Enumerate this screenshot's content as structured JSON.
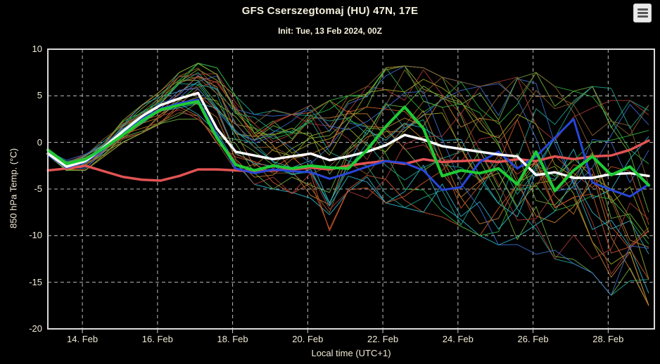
{
  "header": {
    "title": "GFS Cserszegtomaj (HU) 47N, 17E",
    "subtitle": "Init: Tue, 13 Feb 2024, 00Z"
  },
  "menu": {
    "icon": "hamburger-menu-icon"
  },
  "colors": {
    "background": "#000000",
    "text": "#f5f0dc",
    "grid": "#b9b9b9",
    "frame": "#d9d9d9"
  },
  "chart_data": {
    "type": "line",
    "title": "GFS Cserszegtomaj (HU) 47N, 17E",
    "subtitle": "Init: Tue, 13 Feb 2024, 00Z",
    "xlabel": "Local time (UTC+1)",
    "ylabel": "850 hPa Temp. (°C)",
    "ylim": [
      -20,
      10
    ],
    "yticks": [
      10,
      5,
      0,
      -5,
      -10,
      -15,
      -20
    ],
    "xlim": [
      0,
      16.15
    ],
    "xtick_pos": [
      0.92,
      2.92,
      4.92,
      6.92,
      8.92,
      10.92,
      12.92,
      14.92
    ],
    "xtick_labels": [
      "14. Feb",
      "16. Feb",
      "18. Feb",
      "20. Feb",
      "22. Feb",
      "24. Feb",
      "26. Feb",
      "28. Feb"
    ],
    "x_start_day": 0,
    "x_step_day": 0.5,
    "grid": true,
    "legend": false,
    "series": [
      {
        "name": "red-line",
        "color": "#e25353",
        "width": 3.5,
        "values": [
          -3.0,
          -2.8,
          -2.5,
          -3.1,
          -3.7,
          -4.0,
          -4.1,
          -3.6,
          -2.9,
          -2.9,
          -3.0,
          -3.1,
          -3.0,
          -2.9,
          -2.7,
          -2.9,
          -2.5,
          -2.2,
          -2.0,
          -2.3,
          -1.8,
          -2.1,
          -2.0,
          -1.9,
          -2.1,
          -1.8,
          -2.0,
          -1.5,
          -1.8,
          -1.5,
          -1.4,
          -0.8,
          0.2
        ]
      },
      {
        "name": "blue-line",
        "color": "#2746d9",
        "width": 3,
        "values": [
          -1.3,
          -2.7,
          -2.1,
          -0.7,
          1.0,
          2.5,
          3.6,
          4.2,
          4.6,
          0.8,
          -2.8,
          -3.3,
          -2.9,
          -3.1,
          -3.2,
          -3.9,
          -3.3,
          -2.6,
          -2.0,
          -2.2,
          -3.0,
          -5.1,
          -4.8,
          -2.1,
          -1.0,
          -2.8,
          -1.5,
          0.5,
          2.5,
          -4.3,
          -5.1,
          -5.8,
          -4.5
        ]
      },
      {
        "name": "white-line",
        "color": "#ffffff",
        "width": 3.5,
        "values": [
          -1.2,
          -2.6,
          -2.0,
          -0.5,
          1.2,
          2.8,
          4.0,
          4.7,
          5.3,
          1.5,
          -1.0,
          -1.4,
          -1.8,
          -1.5,
          -1.2,
          -1.9,
          -1.5,
          -1.0,
          -0.3,
          0.8,
          0.3,
          -0.4,
          -0.7,
          -1.0,
          -1.3,
          -1.5,
          -3.5,
          -3.2,
          -3.8,
          -3.8,
          -3.4,
          -3.3,
          -3.6
        ]
      },
      {
        "name": "green-line",
        "color": "#1ecb35",
        "width": 4,
        "values": [
          -0.8,
          -2.3,
          -1.8,
          -0.6,
          0.8,
          2.3,
          3.5,
          4.0,
          4.4,
          0.5,
          -2.4,
          -3.0,
          -2.5,
          -2.8,
          -2.5,
          -2.7,
          -2.8,
          -0.8,
          1.7,
          3.8,
          1.5,
          -3.6,
          -3.0,
          -3.3,
          -2.8,
          -4.5,
          -1.0,
          -5.2,
          -3.0,
          -1.5,
          -3.5,
          -2.6,
          -4.6
        ]
      }
    ],
    "ensemble": {
      "count": 30,
      "line_width": 1,
      "seed": 20240213,
      "colors": [
        "#1fa08a",
        "#2fae3e",
        "#9aa32b",
        "#c07c30",
        "#a83a3a",
        "#3b6cc9",
        "#2fb3c9",
        "#6fae3f",
        "#8a5f2e",
        "#c9562b"
      ],
      "envelope_min": [
        -1.5,
        -3.2,
        -3.0,
        -1.5,
        0.0,
        1.0,
        2.0,
        2.5,
        2.5,
        -0.5,
        -3.0,
        -4.5,
        -5.0,
        -5.5,
        -6.0,
        -9.5,
        -6.5,
        -6.0,
        -6.5,
        -7.0,
        -7.5,
        -8.0,
        -9.0,
        -10.0,
        -11.0,
        -11.5,
        -12.0,
        -12.5,
        -13.0,
        -14.0,
        -16.4,
        -15.0,
        -17.5
      ],
      "envelope_max": [
        -0.7,
        -1.6,
        -0.8,
        0.5,
        2.5,
        4.0,
        5.5,
        7.5,
        8.5,
        8.0,
        5.0,
        3.0,
        3.5,
        3.0,
        4.0,
        4.5,
        5.0,
        6.0,
        8.0,
        8.2,
        8.0,
        7.0,
        6.5,
        6.0,
        6.5,
        7.0,
        7.5,
        6.0,
        5.5,
        6.0,
        5.8,
        4.5,
        4.0
      ]
    }
  }
}
